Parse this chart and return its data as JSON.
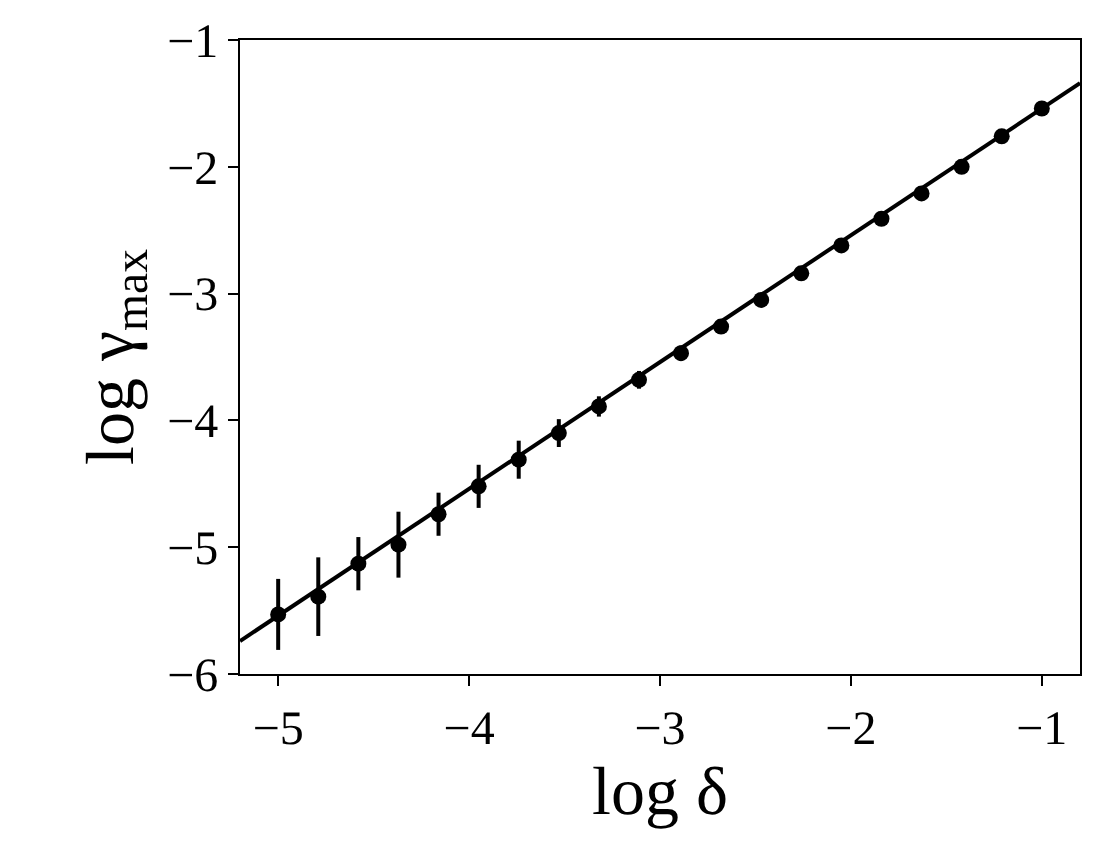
{
  "chart_data": {
    "type": "scatter",
    "xlabel": "log δ",
    "ylabel": "log γ$_{max}$",
    "xlim": [
      -5.2,
      -0.8
    ],
    "ylim": [
      -6,
      -1
    ],
    "xticks": [
      {
        "value": -5,
        "label": "−5"
      },
      {
        "value": -4,
        "label": "−4"
      },
      {
        "value": -3,
        "label": "−3"
      },
      {
        "value": -2,
        "label": "−2"
      },
      {
        "value": -1,
        "label": "−1"
      }
    ],
    "yticks": [
      {
        "value": -6,
        "label": "−6"
      },
      {
        "value": -5,
        "label": "−5"
      },
      {
        "value": -4,
        "label": "−4"
      },
      {
        "value": -3,
        "label": "−3"
      },
      {
        "value": -2,
        "label": "−2"
      },
      {
        "value": -1,
        "label": "−1"
      }
    ],
    "legend": false,
    "series": [
      {
        "color": "#000000",
        "marker": "circle",
        "x": [
          -5.0,
          -4.79,
          -4.58,
          -4.37,
          -4.16,
          -3.95,
          -3.74,
          -3.53,
          -3.32,
          -3.11,
          -2.89,
          -2.68,
          -2.47,
          -2.26,
          -2.05,
          -1.84,
          -1.63,
          -1.42,
          -1.21,
          -1.0
        ],
        "values": [
          -5.53,
          -5.39,
          -5.13,
          -4.98,
          -4.74,
          -4.52,
          -4.31,
          -4.1,
          -3.89,
          -3.68,
          -3.47,
          -3.26,
          -3.05,
          -2.84,
          -2.62,
          -2.41,
          -2.21,
          -2.0,
          -1.76,
          -1.54
        ],
        "errors": [
          0.28,
          0.31,
          0.21,
          0.26,
          0.17,
          0.17,
          0.15,
          0.11,
          0.08,
          0.07,
          0.06,
          0.05,
          null,
          null,
          null,
          null,
          null,
          null,
          null,
          null
        ]
      },
      {
        "type": "line",
        "color": "#000000",
        "line_style": "solid",
        "marker": "none",
        "x": [
          -5.2,
          -0.8
        ],
        "values": [
          -5.74,
          -1.34
        ]
      }
    ]
  }
}
